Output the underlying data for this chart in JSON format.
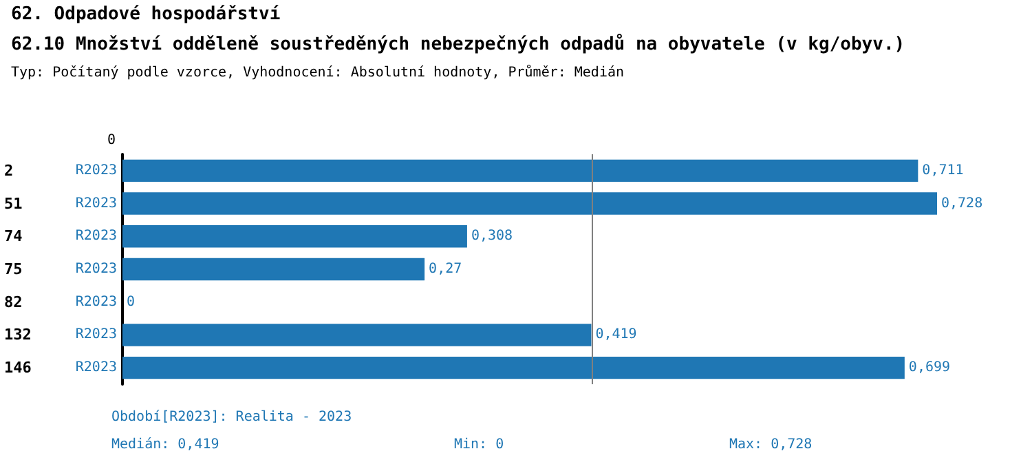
{
  "chart_data": {
    "type": "bar",
    "orientation": "horizontal",
    "title": "62. Odpadové hospodářství",
    "subtitle": "62.10 Množství odděleně soustředěných nebezpečných odpadů na obyvatele (v kg/obyv.)",
    "categories": [
      "2",
      "51",
      "74",
      "75",
      "82",
      "132",
      "146"
    ],
    "series": [
      {
        "name": "R2023",
        "color": "#1f77b4",
        "values": [
          0.711,
          0.728,
          0.308,
          0.27,
          0,
          0.419,
          0.699
        ],
        "value_labels": [
          "0,711",
          "0,728",
          "0,308",
          "0,27",
          "0",
          "0,419",
          "0,699"
        ]
      }
    ],
    "ref_lines": [
      {
        "axis": "x",
        "value": 0.419,
        "label": null,
        "color": "#808080"
      }
    ],
    "annotations": [
      "Typ: Počítaný podle vzorce, Vyhodnocení: Absolutní hodnoty, Průměr: Medián",
      "0",
      "Období[R2023]: Realita - 2023",
      "Medián: 0,419",
      "Min: 0",
      "Max: 0,728"
    ]
  }
}
